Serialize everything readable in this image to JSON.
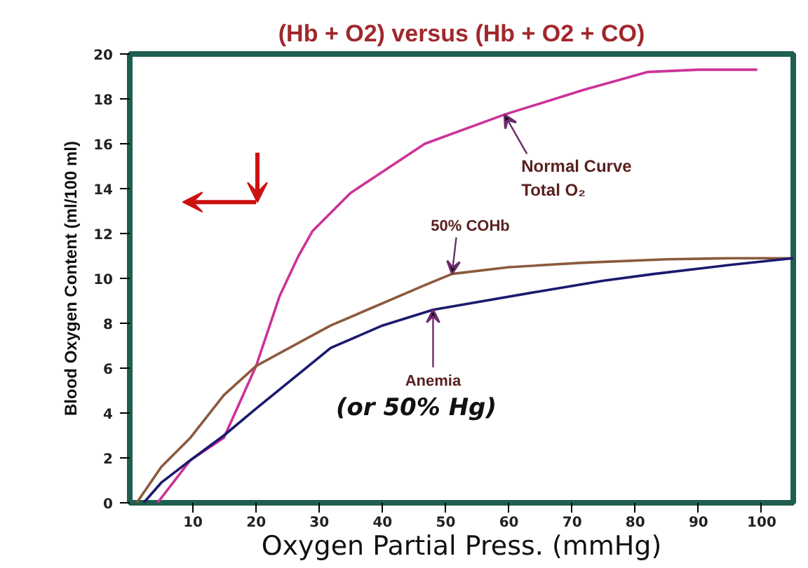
{
  "chart_data": {
    "type": "line",
    "title": "(Hb + O2) versus (Hb + O2 + CO)",
    "xlabel": "Oxygen Partial Press. (mmHg)",
    "ylabel": "Blood Oxygen Content (ml/100 ml)",
    "xlim": [
      0,
      105
    ],
    "ylim": [
      0,
      20
    ],
    "xticks": [
      10,
      20,
      30,
      40,
      50,
      60,
      70,
      80,
      90,
      100
    ],
    "yticks": [
      0,
      2,
      4,
      6,
      8,
      10,
      12,
      14,
      16,
      18,
      20
    ],
    "grid": false,
    "marker": "none",
    "line_style": "solid",
    "series": [
      {
        "color": "#cc3399",
        "x": [
          4.4,
          9.6,
          14.9,
          20,
          23.7,
          26.7,
          28.9,
          34.9,
          46.7,
          59.3,
          71.8,
          82,
          90,
          99.3
        ],
        "values": [
          0,
          1.9,
          2.9,
          6.1,
          9.2,
          11,
          12.1,
          13.8,
          16,
          17.3,
          18.4,
          19.2,
          19.3,
          19.3
        ]
      },
      {
        "color": "#8b5a3c",
        "x": [
          1.1,
          5,
          9.6,
          14.9,
          20,
          31.8,
          46.7,
          51,
          60,
          71.8,
          85,
          95,
          105
        ],
        "values": [
          0,
          1.6,
          2.9,
          4.8,
          6.1,
          7.9,
          9.7,
          10.2,
          10.5,
          10.7,
          10.85,
          10.9,
          10.9
        ]
      },
      {
        "color": "#1a1a6e",
        "x": [
          2.2,
          5,
          9.6,
          14.9,
          20,
          31.8,
          40,
          48,
          64.4,
          75,
          83,
          95,
          105
        ],
        "values": [
          0,
          0.9,
          1.9,
          3,
          4.2,
          6.9,
          7.9,
          8.6,
          9.4,
          9.9,
          10.2,
          10.6,
          10.9
        ]
      }
    ],
    "annotations": [
      {
        "text": "Normal Curve\nTotal O₂",
        "x": 59.3,
        "y": 17.3
      },
      {
        "text": "50% COHb",
        "x": 51,
        "y": 10.2
      },
      {
        "text": "Anemia",
        "x": 48,
        "y": 8.6
      },
      "(or 50% Hg)"
    ]
  }
}
